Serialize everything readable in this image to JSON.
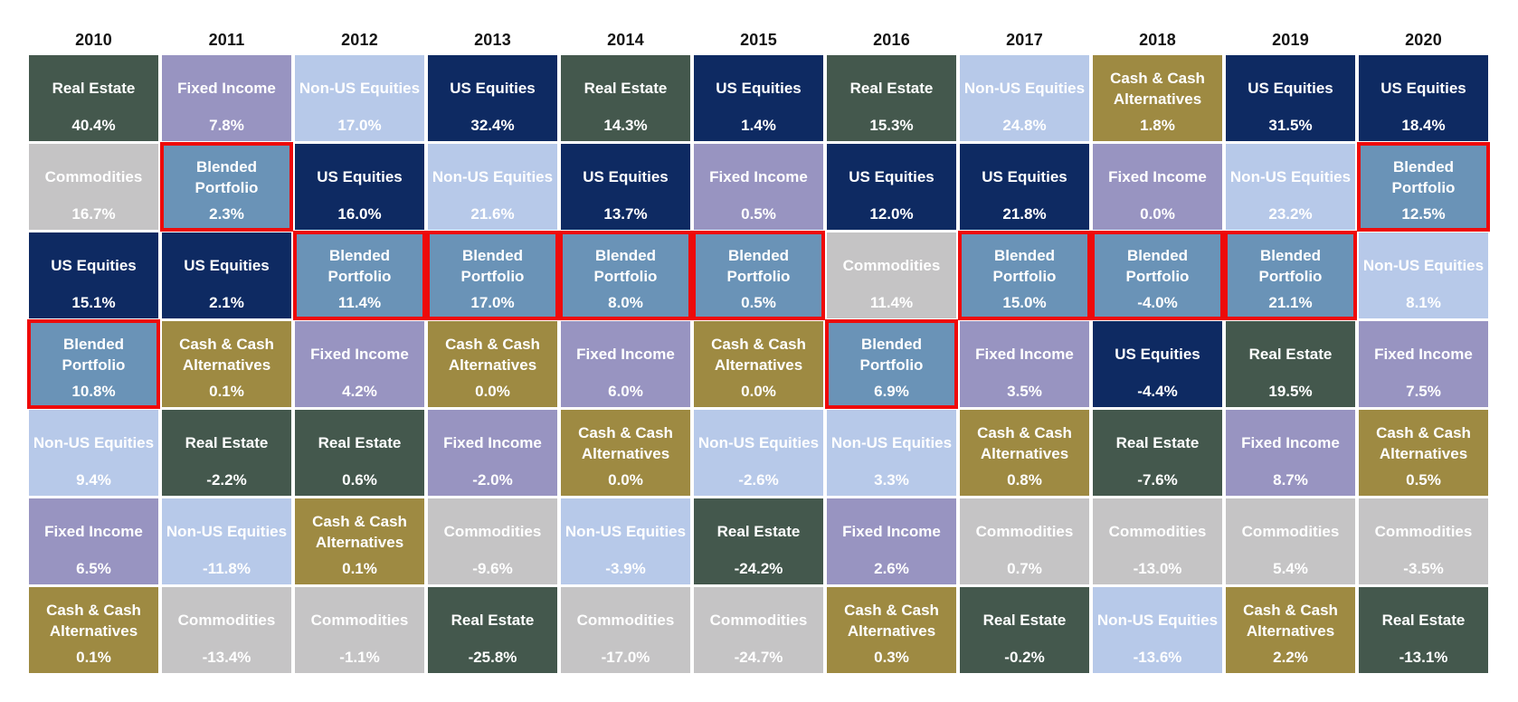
{
  "chart_data": {
    "type": "heatmap",
    "title": "",
    "description": "Periodic table of annual asset class returns ranked best to worst within each year, 2010-2020; Blended Portfolio cells outlined in red",
    "years": [
      "2010",
      "2011",
      "2012",
      "2013",
      "2014",
      "2015",
      "2016",
      "2017",
      "2018",
      "2019",
      "2020"
    ],
    "legend_position": "none",
    "grid": "off",
    "highlight_color": "#ee0a0a",
    "year_label_color": "#141414",
    "cell_text_color": "#ffffff",
    "asset_classes": [
      {
        "name": "Real Estate",
        "color": "#44584d"
      },
      {
        "name": "Fixed Income",
        "color": "#9894c1"
      },
      {
        "name": "Non-US Equities",
        "color": "#b7c9e9"
      },
      {
        "name": "US Equities",
        "color": "#0e2a62"
      },
      {
        "name": "Commodities",
        "color": "#c5c4c5"
      },
      {
        "name": "Cash & Cash Alternatives",
        "color": "#9e8a42"
      },
      {
        "name": "Blended Portfolio",
        "color": "#6a93b7"
      }
    ],
    "columns": [
      {
        "year": "2010",
        "cells": [
          {
            "asset": "Real Estate",
            "value": "40.4%",
            "highlighted": false
          },
          {
            "asset": "Commodities",
            "value": "16.7%",
            "highlighted": false
          },
          {
            "asset": "US Equities",
            "value": "15.1%",
            "highlighted": false
          },
          {
            "asset": "Blended Portfolio",
            "value": "10.8%",
            "highlighted": true
          },
          {
            "asset": "Non-US Equities",
            "value": "9.4%",
            "highlighted": false
          },
          {
            "asset": "Fixed Income",
            "value": "6.5%",
            "highlighted": false
          },
          {
            "asset": "Cash & Cash Alternatives",
            "value": "0.1%",
            "highlighted": false
          }
        ]
      },
      {
        "year": "2011",
        "cells": [
          {
            "asset": "Fixed Income",
            "value": "7.8%",
            "highlighted": false
          },
          {
            "asset": "Blended Portfolio",
            "value": "2.3%",
            "highlighted": true
          },
          {
            "asset": "US Equities",
            "value": "2.1%",
            "highlighted": false
          },
          {
            "asset": "Cash & Cash Alternatives",
            "value": "0.1%",
            "highlighted": false
          },
          {
            "asset": "Real Estate",
            "value": "-2.2%",
            "highlighted": false
          },
          {
            "asset": "Non-US Equities",
            "value": "-11.8%",
            "highlighted": false
          },
          {
            "asset": "Commodities",
            "value": "-13.4%",
            "highlighted": false
          }
        ]
      },
      {
        "year": "2012",
        "cells": [
          {
            "asset": "Non-US Equities",
            "value": "17.0%",
            "highlighted": false
          },
          {
            "asset": "US Equities",
            "value": "16.0%",
            "highlighted": false
          },
          {
            "asset": "Blended Portfolio",
            "value": "11.4%",
            "highlighted": true
          },
          {
            "asset": "Fixed Income",
            "value": "4.2%",
            "highlighted": false
          },
          {
            "asset": "Real Estate",
            "value": "0.6%",
            "highlighted": false
          },
          {
            "asset": "Cash & Cash Alternatives",
            "value": "0.1%",
            "highlighted": false
          },
          {
            "asset": "Commodities",
            "value": "-1.1%",
            "highlighted": false
          }
        ]
      },
      {
        "year": "2013",
        "cells": [
          {
            "asset": "US Equities",
            "value": "32.4%",
            "highlighted": false
          },
          {
            "asset": "Non-US Equities",
            "value": "21.6%",
            "highlighted": false
          },
          {
            "asset": "Blended Portfolio",
            "value": "17.0%",
            "highlighted": true
          },
          {
            "asset": "Cash & Cash Alternatives",
            "value": "0.0%",
            "highlighted": false
          },
          {
            "asset": "Fixed Income",
            "value": "-2.0%",
            "highlighted": false
          },
          {
            "asset": "Commodities",
            "value": "-9.6%",
            "highlighted": false
          },
          {
            "asset": "Real Estate",
            "value": "-25.8%",
            "highlighted": false
          }
        ]
      },
      {
        "year": "2014",
        "cells": [
          {
            "asset": "Real Estate",
            "value": "14.3%",
            "highlighted": false
          },
          {
            "asset": "US Equities",
            "value": "13.7%",
            "highlighted": false
          },
          {
            "asset": "Blended Portfolio",
            "value": "8.0%",
            "highlighted": true
          },
          {
            "asset": "Fixed Income",
            "value": "6.0%",
            "highlighted": false
          },
          {
            "asset": "Cash & Cash Alternatives",
            "value": "0.0%",
            "highlighted": false
          },
          {
            "asset": "Non-US Equities",
            "value": "-3.9%",
            "highlighted": false
          },
          {
            "asset": "Commodities",
            "value": "-17.0%",
            "highlighted": false
          }
        ]
      },
      {
        "year": "2015",
        "cells": [
          {
            "asset": "US Equities",
            "value": "1.4%",
            "highlighted": false
          },
          {
            "asset": "Fixed Income",
            "value": "0.5%",
            "highlighted": false
          },
          {
            "asset": "Blended Portfolio",
            "value": "0.5%",
            "highlighted": true
          },
          {
            "asset": "Cash & Cash Alternatives",
            "value": "0.0%",
            "highlighted": false
          },
          {
            "asset": "Non-US Equities",
            "value": "-2.6%",
            "highlighted": false
          },
          {
            "asset": "Real Estate",
            "value": "-24.2%",
            "highlighted": false
          },
          {
            "asset": "Commodities",
            "value": "-24.7%",
            "highlighted": false
          }
        ]
      },
      {
        "year": "2016",
        "cells": [
          {
            "asset": "Real Estate",
            "value": "15.3%",
            "highlighted": false
          },
          {
            "asset": "US Equities",
            "value": "12.0%",
            "highlighted": false
          },
          {
            "asset": "Commodities",
            "value": "11.4%",
            "highlighted": false
          },
          {
            "asset": "Blended Portfolio",
            "value": "6.9%",
            "highlighted": true
          },
          {
            "asset": "Non-US Equities",
            "value": "3.3%",
            "highlighted": false
          },
          {
            "asset": "Fixed Income",
            "value": "2.6%",
            "highlighted": false
          },
          {
            "asset": "Cash & Cash Alternatives",
            "value": "0.3%",
            "highlighted": false
          }
        ]
      },
      {
        "year": "2017",
        "cells": [
          {
            "asset": "Non-US Equities",
            "value": "24.8%",
            "highlighted": false
          },
          {
            "asset": "US Equities",
            "value": "21.8%",
            "highlighted": false
          },
          {
            "asset": "Blended Portfolio",
            "value": "15.0%",
            "highlighted": true
          },
          {
            "asset": "Fixed Income",
            "value": "3.5%",
            "highlighted": false
          },
          {
            "asset": "Cash & Cash Alternatives",
            "value": "0.8%",
            "highlighted": false
          },
          {
            "asset": "Commodities",
            "value": "0.7%",
            "highlighted": false
          },
          {
            "asset": "Real Estate",
            "value": "-0.2%",
            "highlighted": false
          }
        ]
      },
      {
        "year": "2018",
        "cells": [
          {
            "asset": "Cash & Cash Alternatives",
            "value": "1.8%",
            "highlighted": false
          },
          {
            "asset": "Fixed Income",
            "value": "0.0%",
            "highlighted": false
          },
          {
            "asset": "Blended Portfolio",
            "value": "-4.0%",
            "highlighted": true
          },
          {
            "asset": "US Equities",
            "value": "-4.4%",
            "highlighted": false
          },
          {
            "asset": "Real Estate",
            "value": "-7.6%",
            "highlighted": false
          },
          {
            "asset": "Commodities",
            "value": "-13.0%",
            "highlighted": false
          },
          {
            "asset": "Non-US Equities",
            "value": "-13.6%",
            "highlighted": false
          }
        ]
      },
      {
        "year": "2019",
        "cells": [
          {
            "asset": "US Equities",
            "value": "31.5%",
            "highlighted": false
          },
          {
            "asset": "Non-US Equities",
            "value": "23.2%",
            "highlighted": false
          },
          {
            "asset": "Blended Portfolio",
            "value": "21.1%",
            "highlighted": true
          },
          {
            "asset": "Real Estate",
            "value": "19.5%",
            "highlighted": false
          },
          {
            "asset": "Fixed Income",
            "value": "8.7%",
            "highlighted": false
          },
          {
            "asset": "Commodities",
            "value": "5.4%",
            "highlighted": false
          },
          {
            "asset": "Cash & Cash Alternatives",
            "value": "2.2%",
            "highlighted": false
          }
        ]
      },
      {
        "year": "2020",
        "cells": [
          {
            "asset": "US Equities",
            "value": "18.4%",
            "highlighted": false
          },
          {
            "asset": "Blended Portfolio",
            "value": "12.5%",
            "highlighted": true
          },
          {
            "asset": "Non-US Equities",
            "value": "8.1%",
            "highlighted": false
          },
          {
            "asset": "Fixed Income",
            "value": "7.5%",
            "highlighted": false
          },
          {
            "asset": "Cash & Cash Alternatives",
            "value": "0.5%",
            "highlighted": false
          },
          {
            "asset": "Commodities",
            "value": "-3.5%",
            "highlighted": false
          },
          {
            "asset": "Real Estate",
            "value": "-13.1%",
            "highlighted": false
          }
        ]
      }
    ]
  }
}
